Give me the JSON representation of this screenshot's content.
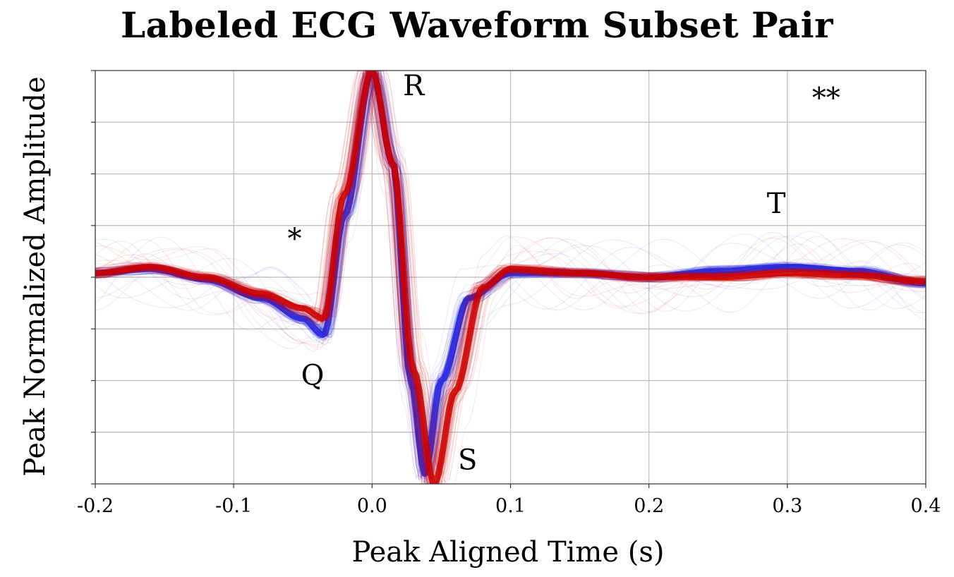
{
  "chart_data": {
    "type": "line",
    "title": "Labeled ECG Waveform Subset Pair",
    "xlabel": "Peak Aligned Time (s)",
    "ylabel": "Peak Normalized Amplitude",
    "xlim": [
      -0.2,
      0.4
    ],
    "ylim": [
      -1.0,
      1.0
    ],
    "grid": true,
    "x_ticks": [
      "-0.2",
      "-0.1",
      "0.0",
      "0.1",
      "0.2",
      "0.3",
      "0.4"
    ],
    "y_tick_labels_shown": false,
    "colors": {
      "series_a": "#cc0000",
      "series_b": "#2222dd",
      "grid": "#bbbbbb"
    },
    "series": [
      {
        "color": "red",
        "x": [
          -0.2,
          -0.16,
          -0.12,
          -0.08,
          -0.05,
          -0.035,
          -0.02,
          0.0,
          0.015,
          0.03,
          0.045,
          0.06,
          0.08,
          0.1,
          0.15,
          0.2,
          0.25,
          0.3,
          0.35,
          0.4
        ],
        "y": [
          0.02,
          0.05,
          0.0,
          -0.08,
          -0.15,
          -0.2,
          0.4,
          1.0,
          0.55,
          -0.45,
          -1.0,
          -0.55,
          -0.05,
          0.04,
          0.02,
          0.0,
          0.0,
          0.02,
          0.01,
          -0.02
        ]
      },
      {
        "color": "blue",
        "x": [
          -0.2,
          -0.16,
          -0.12,
          -0.08,
          -0.05,
          -0.035,
          -0.02,
          0.0,
          0.015,
          0.028,
          0.038,
          0.05,
          0.07,
          0.1,
          0.15,
          0.2,
          0.25,
          0.3,
          0.35,
          0.4
        ],
        "y": [
          0.02,
          0.04,
          -0.01,
          -0.1,
          -0.2,
          -0.28,
          0.3,
          1.0,
          0.55,
          -0.5,
          -0.95,
          -0.5,
          -0.1,
          0.02,
          0.02,
          0.0,
          0.03,
          0.05,
          0.03,
          -0.03
        ]
      }
    ],
    "annotations": [
      {
        "text": "R",
        "x": 0.03,
        "y": 0.88
      },
      {
        "text": "Q",
        "x": -0.043,
        "y": -0.52
      },
      {
        "text": "S",
        "x": 0.069,
        "y": -0.93
      },
      {
        "text": "T",
        "x": 0.292,
        "y": 0.31
      },
      {
        "text": "*",
        "x": -0.056,
        "y": 0.14
      },
      {
        "text": "**",
        "x": 0.328,
        "y": 0.82
      }
    ]
  }
}
